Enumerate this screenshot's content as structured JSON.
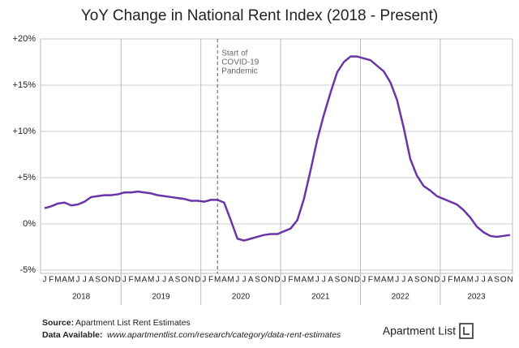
{
  "chart_data": {
    "type": "line",
    "title": "YoY Change in National Rent Index (2018 - Present)",
    "categories": [
      "J",
      "F",
      "M",
      "A",
      "M",
      "J",
      "J",
      "A",
      "S",
      "O",
      "N",
      "D",
      "J",
      "F",
      "M",
      "A",
      "M",
      "J",
      "J",
      "A",
      "S",
      "O",
      "N",
      "D",
      "J",
      "F",
      "M",
      "A",
      "M",
      "J",
      "J",
      "A",
      "S",
      "O",
      "N",
      "D",
      "J",
      "F",
      "M",
      "A",
      "M",
      "J",
      "J",
      "A",
      "S",
      "O",
      "N",
      "D",
      "J",
      "F",
      "M",
      "A",
      "M",
      "J",
      "J",
      "A",
      "S",
      "O",
      "N",
      "D",
      "J",
      "F",
      "M",
      "A",
      "M",
      "J",
      "J",
      "A",
      "S",
      "O",
      "N"
    ],
    "groups": [
      "2018",
      "2019",
      "2020",
      "2021",
      "2022",
      "2023"
    ],
    "series": [
      {
        "name": "YoY Change",
        "color": "#6a35a8",
        "values": [
          1.7,
          1.9,
          2.2,
          2.3,
          2.0,
          2.1,
          2.4,
          2.9,
          3.0,
          3.1,
          3.1,
          3.2,
          3.4,
          3.4,
          3.5,
          3.4,
          3.3,
          3.1,
          3.0,
          2.9,
          2.8,
          2.7,
          2.5,
          2.5,
          2.4,
          2.6,
          2.6,
          2.3,
          0.4,
          -1.6,
          -1.8,
          -1.6,
          -1.4,
          -1.2,
          -1.1,
          -1.1,
          -0.8,
          -0.5,
          0.4,
          2.7,
          5.8,
          9.1,
          11.8,
          14.2,
          16.4,
          17.5,
          18.1,
          18.1,
          17.9,
          17.7,
          17.1,
          16.5,
          15.3,
          13.4,
          10.4,
          7.0,
          5.2,
          4.1,
          3.6,
          3.0,
          2.7,
          2.4,
          2.1,
          1.5,
          0.7,
          -0.3,
          -0.9,
          -1.3,
          -1.4,
          -1.3,
          -1.2
        ]
      }
    ],
    "ylim": [
      -5,
      20
    ],
    "yticks": [
      {
        "value": -5,
        "label": "-5%"
      },
      {
        "value": 0,
        "label": "0%"
      },
      {
        "value": 5,
        "label": "+5%"
      },
      {
        "value": 10,
        "label": "+10%"
      },
      {
        "value": 15,
        "label": "+15%"
      },
      {
        "value": 20,
        "label": "+20%"
      }
    ],
    "grid": true,
    "annotation": [
      "Start of",
      "COVID-19",
      "Pandemic"
    ],
    "source": {
      "label": "Source:",
      "text": "Apartment List Rent Estimates"
    },
    "data_available": {
      "label": "Data Available:",
      "text": "www.apartmentlist.com/research/category/data-rent-estimates"
    },
    "logo": "Apartment List"
  }
}
